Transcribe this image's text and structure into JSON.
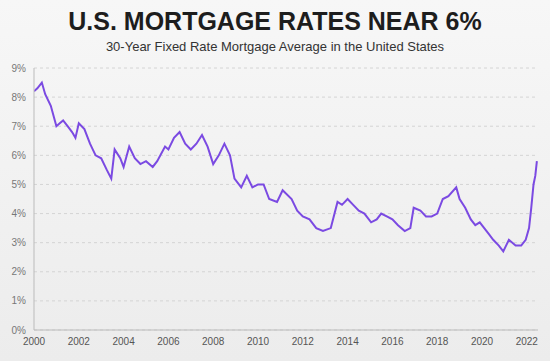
{
  "chart_data": {
    "type": "line",
    "title": "U.S. MORTGAGE RATES NEAR 6%",
    "subtitle": "30-Year Fixed Rate Mortgage Average in the United States",
    "color": "#7b4ae2",
    "grid": true,
    "x": [
      2000.0,
      2000.15,
      2000.35,
      2000.5,
      2000.75,
      2001.0,
      2001.15,
      2001.3,
      2001.5,
      2001.7,
      2001.85,
      2002.0,
      2002.25,
      2002.5,
      2002.75,
      2003.0,
      2003.25,
      2003.45,
      2003.6,
      2003.85,
      2004.0,
      2004.25,
      2004.5,
      2004.75,
      2005.0,
      2005.3,
      2005.5,
      2005.85,
      2006.0,
      2006.25,
      2006.5,
      2006.75,
      2007.0,
      2007.25,
      2007.5,
      2007.75,
      2008.0,
      2008.25,
      2008.5,
      2008.75,
      2008.95,
      2009.25,
      2009.5,
      2009.75,
      2010.0,
      2010.25,
      2010.5,
      2010.85,
      2011.1,
      2011.5,
      2011.75,
      2012.0,
      2012.3,
      2012.6,
      2012.9,
      2013.25,
      2013.55,
      2013.75,
      2014.0,
      2014.25,
      2014.5,
      2014.75,
      2015.05,
      2015.3,
      2015.5,
      2015.75,
      2016.0,
      2016.25,
      2016.55,
      2016.8,
      2016.95,
      2017.25,
      2017.5,
      2017.75,
      2018.0,
      2018.25,
      2018.5,
      2018.85,
      2019.0,
      2019.25,
      2019.5,
      2019.7,
      2019.9,
      2020.1,
      2020.3,
      2020.5,
      2020.75,
      2020.95,
      2021.2,
      2021.5,
      2021.75,
      2021.95,
      2022.1,
      2022.2,
      2022.3,
      2022.38,
      2022.45
    ],
    "values": [
      8.2,
      8.3,
      8.5,
      8.1,
      7.7,
      7.0,
      7.1,
      7.2,
      7.0,
      6.8,
      6.6,
      7.1,
      6.9,
      6.4,
      6.0,
      5.9,
      5.5,
      5.2,
      6.2,
      5.9,
      5.6,
      6.3,
      5.9,
      5.7,
      5.8,
      5.6,
      5.8,
      6.3,
      6.2,
      6.6,
      6.8,
      6.4,
      6.2,
      6.4,
      6.7,
      6.3,
      5.7,
      6.0,
      6.4,
      6.0,
      5.2,
      4.9,
      5.3,
      4.9,
      5.0,
      5.0,
      4.5,
      4.4,
      4.8,
      4.5,
      4.1,
      3.9,
      3.8,
      3.5,
      3.4,
      3.5,
      4.4,
      4.3,
      4.5,
      4.3,
      4.1,
      4.0,
      3.7,
      3.8,
      4.0,
      3.9,
      3.8,
      3.6,
      3.4,
      3.5,
      4.2,
      4.1,
      3.9,
      3.9,
      4.0,
      4.5,
      4.6,
      4.9,
      4.5,
      4.2,
      3.8,
      3.6,
      3.7,
      3.5,
      3.3,
      3.1,
      2.9,
      2.7,
      3.1,
      2.9,
      2.9,
      3.1,
      3.5,
      4.2,
      5.0,
      5.3,
      5.8
    ],
    "xlim": [
      2000,
      2022.5
    ],
    "xticks": [
      2000,
      2002,
      2004,
      2006,
      2008,
      2010,
      2012,
      2014,
      2016,
      2018,
      2020,
      2022
    ],
    "ylim": [
      0,
      9
    ],
    "yticks": [
      {
        "value": 0,
        "label": "0%"
      },
      {
        "value": 1,
        "label": "1%"
      },
      {
        "value": 2,
        "label": "2%"
      },
      {
        "value": 3,
        "label": "3%"
      },
      {
        "value": 4,
        "label": "4%"
      },
      {
        "value": 5,
        "label": "5%"
      },
      {
        "value": 6,
        "label": "6%"
      },
      {
        "value": 7,
        "label": "7%"
      },
      {
        "value": 8,
        "label": "8%"
      },
      {
        "value": 9,
        "label": "9%"
      }
    ]
  }
}
